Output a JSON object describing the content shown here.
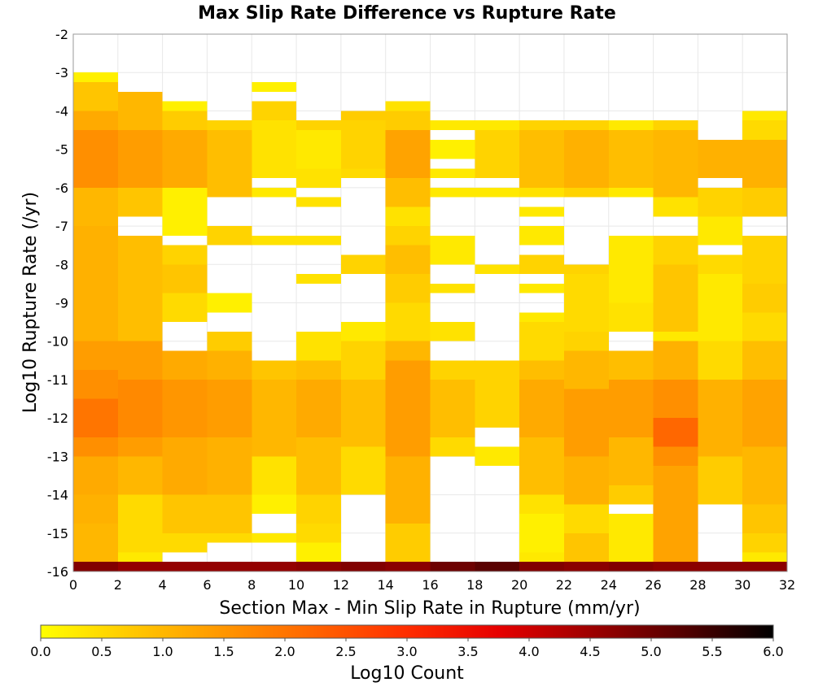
{
  "chart_data": {
    "type": "heatmap",
    "title": "Max Slip Rate Difference vs Rupture Rate",
    "xlabel": "Section Max - Min Slip Rate in Rupture (mm/yr)",
    "ylabel": "Log10 Rupture Rate (/yr)",
    "xlim": [
      0,
      32
    ],
    "ylim": [
      -16,
      -2
    ],
    "x_ticks": [
      "0",
      "2",
      "4",
      "6",
      "8",
      "10",
      "12",
      "14",
      "16",
      "18",
      "20",
      "22",
      "24",
      "26",
      "28",
      "30",
      "32"
    ],
    "y_ticks": [
      "-2",
      "-3",
      "-4",
      "-5",
      "-6",
      "-7",
      "-8",
      "-9",
      "-10",
      "-11",
      "-12",
      "-13",
      "-14",
      "-15",
      "-16"
    ],
    "x_bin_width": 2,
    "y_bin_height": 0.25,
    "grid": true,
    "colorbar": {
      "label": "Log10 Count",
      "range": [
        0,
        6
      ],
      "ticks": [
        "0.0",
        "0.5",
        "1.0",
        "1.5",
        "2.0",
        "2.5",
        "3.0",
        "3.5",
        "4.0",
        "4.5",
        "5.0",
        "5.5",
        "6.0"
      ],
      "colors": [
        "#ffff00",
        "#ffc800",
        "#ff9600",
        "#ff6400",
        "#ff2d00",
        "#e60000",
        "#9e0000",
        "#550000",
        "#000000"
      ]
    },
    "columns": [
      {
        "x": [
          0,
          2
        ],
        "cells": [
          [
            -16,
            -15.75,
            4.8
          ],
          [
            -15.75,
            -14.75,
            1.0
          ],
          [
            -14.75,
            -14,
            1.1
          ],
          [
            -14,
            -13,
            1.2
          ],
          [
            -13,
            -12.5,
            1.6
          ],
          [
            -12.5,
            -11.5,
            2.0
          ],
          [
            -11.5,
            -10.75,
            1.6
          ],
          [
            -10.75,
            -10,
            1.4
          ],
          [
            -10,
            -7,
            1.1
          ],
          [
            -7,
            -6,
            1.0
          ],
          [
            -6,
            -4.5,
            1.6
          ],
          [
            -4.5,
            -4,
            1.2
          ],
          [
            -4,
            -3.25,
            0.8
          ],
          [
            -3.25,
            -3,
            0.2
          ]
        ]
      },
      {
        "x": [
          2,
          4
        ],
        "cells": [
          [
            -16,
            -15.75,
            4.6
          ],
          [
            -15.75,
            -15.5,
            0.3
          ],
          [
            -15.5,
            -14,
            0.5
          ],
          [
            -14,
            -13,
            1.0
          ],
          [
            -13,
            -12.5,
            1.4
          ],
          [
            -12.5,
            -11,
            1.7
          ],
          [
            -11,
            -10,
            1.4
          ],
          [
            -10,
            -7.25,
            0.9
          ],
          [
            -6.75,
            -6,
            0.8
          ],
          [
            -6,
            -4.5,
            1.4
          ],
          [
            -4.5,
            -3.5,
            1.0
          ]
        ]
      },
      {
        "x": [
          4,
          6
        ],
        "cells": [
          [
            -16,
            -15.75,
            4.6
          ],
          [
            -15.5,
            -15,
            0.5
          ],
          [
            -15,
            -14,
            0.8
          ],
          [
            -14,
            -12.5,
            1.2
          ],
          [
            -12.5,
            -11,
            1.5
          ],
          [
            -11,
            -10.25,
            1.2
          ],
          [
            -9.5,
            -8.75,
            0.5
          ],
          [
            -8.75,
            -8,
            0.8
          ],
          [
            -8,
            -7.5,
            0.6
          ],
          [
            -7.25,
            -6,
            0.2
          ],
          [
            -6,
            -4.5,
            1.2
          ],
          [
            -4.5,
            -4,
            0.7
          ],
          [
            -4,
            -3.75,
            0.2
          ]
        ]
      },
      {
        "x": [
          6,
          8
        ],
        "cells": [
          [
            -16,
            -15.75,
            4.6
          ],
          [
            -15.25,
            -15,
            0.5
          ],
          [
            -15,
            -14,
            0.8
          ],
          [
            -14,
            -12.5,
            1.1
          ],
          [
            -12.5,
            -11,
            1.4
          ],
          [
            -11,
            -10.25,
            1.1
          ],
          [
            -10.25,
            -9.75,
            0.7
          ],
          [
            -9.25,
            -8.75,
            0.2
          ],
          [
            -7.5,
            -7,
            0.6
          ],
          [
            -6.25,
            -4.5,
            0.9
          ],
          [
            -4.5,
            -4.25,
            0.6
          ]
        ]
      },
      {
        "x": [
          8,
          10
        ],
        "cells": [
          [
            -16,
            -15.75,
            4.6
          ],
          [
            -15.25,
            -15,
            0.3
          ],
          [
            -14.5,
            -14,
            0.2
          ],
          [
            -14,
            -13,
            0.4
          ],
          [
            -13,
            -11,
            1.0
          ],
          [
            -11,
            -10.5,
            0.8
          ],
          [
            -7.5,
            -7.25,
            0.4
          ],
          [
            -6.25,
            -6,
            0.3
          ],
          [
            -5.75,
            -4.25,
            0.4
          ],
          [
            -4.25,
            -3.75,
            0.6
          ],
          [
            -3.5,
            -3.25,
            0.2
          ]
        ]
      },
      {
        "x": [
          10,
          12
        ],
        "cells": [
          [
            -16,
            -15.75,
            4.7
          ],
          [
            -15.75,
            -15.25,
            0.2
          ],
          [
            -15.25,
            -14.75,
            0.5
          ],
          [
            -14.75,
            -14,
            0.6
          ],
          [
            -14,
            -12.5,
            0.9
          ],
          [
            -12.5,
            -11,
            1.2
          ],
          [
            -11,
            -10.5,
            0.9
          ],
          [
            -10.5,
            -9.75,
            0.4
          ],
          [
            -8.5,
            -8.25,
            0.4
          ],
          [
            -7.5,
            -7.25,
            0.4
          ],
          [
            -6.5,
            -6.25,
            0.4
          ],
          [
            -6,
            -5.5,
            0.4
          ],
          [
            -5.5,
            -4.5,
            0.3
          ],
          [
            -4.5,
            -4.25,
            0.6
          ]
        ]
      },
      {
        "x": [
          12,
          14
        ],
        "cells": [
          [
            -16,
            -15.75,
            4.8
          ],
          [
            -14,
            -12.75,
            0.5
          ],
          [
            -12.75,
            -11,
            0.9
          ],
          [
            -11,
            -10,
            0.6
          ],
          [
            -10,
            -9.5,
            0.3
          ],
          [
            -8.25,
            -7.75,
            0.6
          ],
          [
            -5.75,
            -5.5,
            0.5
          ],
          [
            -5.5,
            -4.25,
            0.6
          ],
          [
            -4.25,
            -4,
            0.7
          ]
        ]
      },
      {
        "x": [
          14,
          16
        ],
        "cells": [
          [
            -16,
            -15.75,
            4.7
          ],
          [
            -15.75,
            -14.75,
            0.7
          ],
          [
            -14.75,
            -13,
            1.1
          ],
          [
            -13,
            -10.5,
            1.4
          ],
          [
            -10.5,
            -10,
            1.0
          ],
          [
            -10,
            -9,
            0.5
          ],
          [
            -9,
            -8.25,
            0.7
          ],
          [
            -8.25,
            -7.5,
            0.9
          ],
          [
            -7.5,
            -7,
            0.6
          ],
          [
            -7,
            -6.5,
            0.4
          ],
          [
            -6.5,
            -5.75,
            0.9
          ],
          [
            -5.75,
            -4.5,
            1.3
          ],
          [
            -4.5,
            -4,
            0.7
          ],
          [
            -4,
            -3.75,
            0.4
          ]
        ]
      },
      {
        "x": [
          16,
          18
        ],
        "cells": [
          [
            -16,
            -15.75,
            5.0
          ],
          [
            -13,
            -12.5,
            0.5
          ],
          [
            -12.5,
            -11,
            0.9
          ],
          [
            -11,
            -10.5,
            0.6
          ],
          [
            -10,
            -9.5,
            0.4
          ],
          [
            -8.75,
            -8.5,
            0.4
          ],
          [
            -8,
            -7.25,
            0.3
          ],
          [
            -6.25,
            -6,
            0.3
          ],
          [
            -5.75,
            -5.5,
            0.3
          ],
          [
            -5.25,
            -4.75,
            0.2
          ],
          [
            -4.5,
            -4.25,
            0.3
          ]
        ]
      },
      {
        "x": [
          18,
          20
        ],
        "cells": [
          [
            -16,
            -15.75,
            5.2
          ],
          [
            -13.25,
            -12.75,
            0.3
          ],
          [
            -12.25,
            -10.5,
            0.6
          ],
          [
            -8.25,
            -8,
            0.4
          ],
          [
            -6.25,
            -6,
            0.3
          ],
          [
            -5.75,
            -4.5,
            0.6
          ],
          [
            -4.5,
            -4.25,
            0.3
          ]
        ]
      },
      {
        "x": [
          20,
          22
        ],
        "cells": [
          [
            -16,
            -15.75,
            4.8
          ],
          [
            -15.75,
            -15.5,
            0.3
          ],
          [
            -15.5,
            -14.5,
            0.2
          ],
          [
            -14.5,
            -14,
            0.4
          ],
          [
            -14,
            -12.5,
            0.9
          ],
          [
            -12.5,
            -11,
            1.2
          ],
          [
            -11,
            -10.5,
            0.9
          ],
          [
            -10.5,
            -9.5,
            0.5
          ],
          [
            -9.5,
            -9.25,
            0.3
          ],
          [
            -8.75,
            -8.5,
            0.3
          ],
          [
            -8.25,
            -7.75,
            0.6
          ],
          [
            -7.5,
            -7,
            0.3
          ],
          [
            -6.75,
            -6.5,
            0.3
          ],
          [
            -6.25,
            -6,
            0.4
          ],
          [
            -6,
            -4.5,
            0.9
          ],
          [
            -4.5,
            -4.25,
            0.6
          ]
        ]
      },
      {
        "x": [
          22,
          24
        ],
        "cells": [
          [
            -16,
            -15.75,
            4.7
          ],
          [
            -15.75,
            -15,
            0.8
          ],
          [
            -15,
            -14.25,
            0.5
          ],
          [
            -14.25,
            -13,
            1.1
          ],
          [
            -13,
            -11.25,
            1.4
          ],
          [
            -11.25,
            -10.25,
            1.0
          ],
          [
            -10.25,
            -9.75,
            0.6
          ],
          [
            -9.75,
            -8.25,
            0.5
          ],
          [
            -8.25,
            -8,
            0.6
          ],
          [
            -6.25,
            -6,
            0.6
          ],
          [
            -6,
            -4.5,
            1.1
          ],
          [
            -4.5,
            -4.25,
            0.6
          ]
        ]
      },
      {
        "x": [
          24,
          26
        ],
        "cells": [
          [
            -16,
            -15.75,
            4.8
          ],
          [
            -15.75,
            -14.5,
            0.3
          ],
          [
            -14.25,
            -13.75,
            0.7
          ],
          [
            -13.75,
            -12.5,
            1.0
          ],
          [
            -12.5,
            -11,
            1.4
          ],
          [
            -11,
            -10.25,
            0.9
          ],
          [
            -9.75,
            -9,
            0.4
          ],
          [
            -9,
            -8,
            0.3
          ],
          [
            -8,
            -7.25,
            0.3
          ],
          [
            -6.25,
            -6,
            0.3
          ],
          [
            -6,
            -4.5,
            0.9
          ],
          [
            -4.5,
            -4.25,
            0.3
          ]
        ]
      },
      {
        "x": [
          26,
          28
        ],
        "cells": [
          [
            -16,
            -15.75,
            4.7
          ],
          [
            -15.75,
            -13.25,
            1.3
          ],
          [
            -13.25,
            -12.75,
            1.6
          ],
          [
            -12.75,
            -12,
            2.2
          ],
          [
            -12,
            -11,
            1.6
          ],
          [
            -11,
            -10,
            1.1
          ],
          [
            -10,
            -9.75,
            0.3
          ],
          [
            -9.75,
            -8,
            0.8
          ],
          [
            -8,
            -7.25,
            0.6
          ],
          [
            -6.75,
            -6.25,
            0.4
          ],
          [
            -6.25,
            -4.5,
            1.0
          ],
          [
            -4.5,
            -4.25,
            0.6
          ]
        ]
      },
      {
        "x": [
          28,
          30
        ],
        "cells": [
          [
            -16,
            -15.75,
            4.7
          ],
          [
            -14.25,
            -13,
            0.7
          ],
          [
            -13,
            -11,
            1.1
          ],
          [
            -11,
            -10,
            0.5
          ],
          [
            -10,
            -8.25,
            0.3
          ],
          [
            -8.25,
            -7.75,
            0.5
          ],
          [
            -7.5,
            -6.75,
            0.3
          ],
          [
            -6.75,
            -6,
            0.6
          ],
          [
            -5.75,
            -4.75,
            1.1
          ]
        ]
      },
      {
        "x": [
          30,
          32
        ],
        "cells": [
          [
            -16,
            -15.75,
            4.7
          ],
          [
            -15.75,
            -15.5,
            0.3
          ],
          [
            -15.5,
            -15,
            0.6
          ],
          [
            -15,
            -14.25,
            0.8
          ],
          [
            -14.25,
            -12.75,
            1.0
          ],
          [
            -12.75,
            -11,
            1.3
          ],
          [
            -11,
            -10,
            0.9
          ],
          [
            -10,
            -9.25,
            0.5
          ],
          [
            -9.25,
            -8.5,
            0.7
          ],
          [
            -8.5,
            -7.25,
            0.6
          ],
          [
            -6.75,
            -6,
            0.7
          ],
          [
            -6,
            -4.75,
            1.1
          ],
          [
            -4.75,
            -4.25,
            0.5
          ],
          [
            -4.25,
            -4,
            0.3
          ]
        ]
      }
    ]
  }
}
